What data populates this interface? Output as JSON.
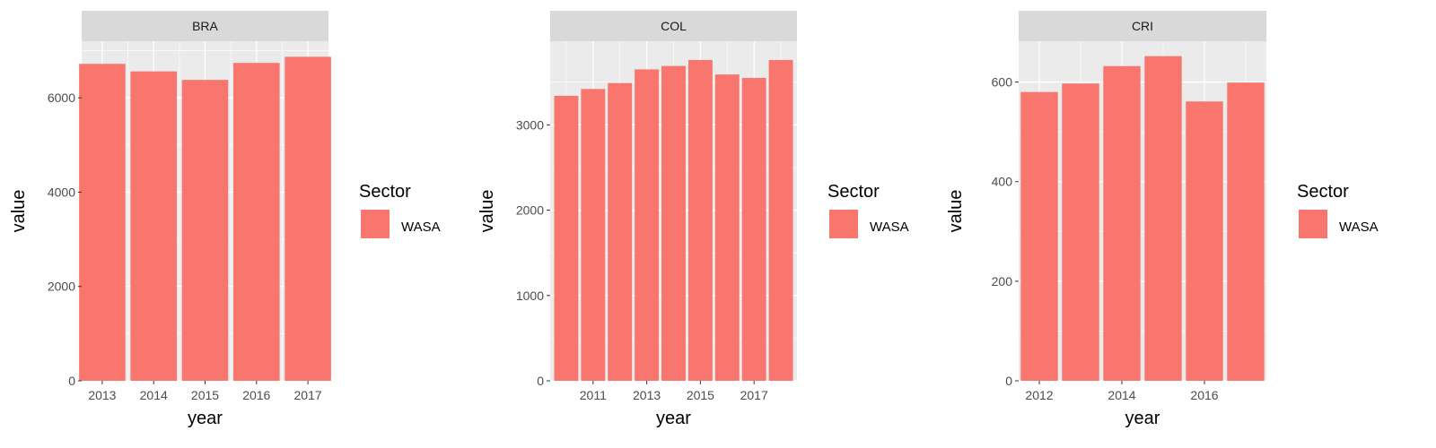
{
  "chart_data": [
    {
      "type": "bar",
      "panel": "BRA",
      "x": [
        2013,
        2014,
        2015,
        2016,
        2017
      ],
      "series": [
        {
          "name": "WASA",
          "values": [
            6720,
            6560,
            6380,
            6740,
            6870
          ]
        }
      ],
      "xlabel": "year",
      "ylabel": "value",
      "xticks": [
        2013,
        2014,
        2015,
        2016,
        2017
      ],
      "yticks": [
        0,
        2000,
        4000,
        6000
      ],
      "xlim": [
        2012.6,
        2017.4
      ],
      "ylim": [
        0,
        7200
      ],
      "legend_title": "Sector",
      "grid": true,
      "legend": "right"
    },
    {
      "type": "bar",
      "panel": "COL",
      "x": [
        2010,
        2011,
        2012,
        2013,
        2014,
        2015,
        2016,
        2017,
        2018
      ],
      "series": [
        {
          "name": "WASA",
          "values": [
            3340,
            3420,
            3490,
            3650,
            3690,
            3760,
            3590,
            3550,
            3760
          ]
        }
      ],
      "xlabel": "year",
      "ylabel": "value",
      "xticks": [
        2011,
        2013,
        2015,
        2017
      ],
      "yticks": [
        0,
        1000,
        2000,
        3000
      ],
      "xlim": [
        2009.4,
        2018.6
      ],
      "ylim": [
        0,
        3980
      ],
      "legend_title": "Sector",
      "grid": true,
      "legend": "right"
    },
    {
      "type": "bar",
      "panel": "CRI",
      "x": [
        2012,
        2013,
        2014,
        2015,
        2016,
        2017
      ],
      "series": [
        {
          "name": "WASA",
          "values": [
            580,
            597,
            632,
            652,
            561,
            599
          ]
        }
      ],
      "xlabel": "year",
      "ylabel": "value",
      "xticks": [
        2012,
        2014,
        2016
      ],
      "yticks": [
        0,
        200,
        400,
        600
      ],
      "xlim": [
        2011.5,
        2017.5
      ],
      "ylim": [
        0,
        682
      ],
      "legend_title": "Sector",
      "grid": true,
      "legend": "right"
    }
  ],
  "colors": {
    "bar_fill": "#F8766D",
    "panel_background": "#EBEBEB",
    "strip_background": "#D9D9D9",
    "grid_major": "#FFFFFF",
    "tick_text": "#4D4D4D"
  }
}
